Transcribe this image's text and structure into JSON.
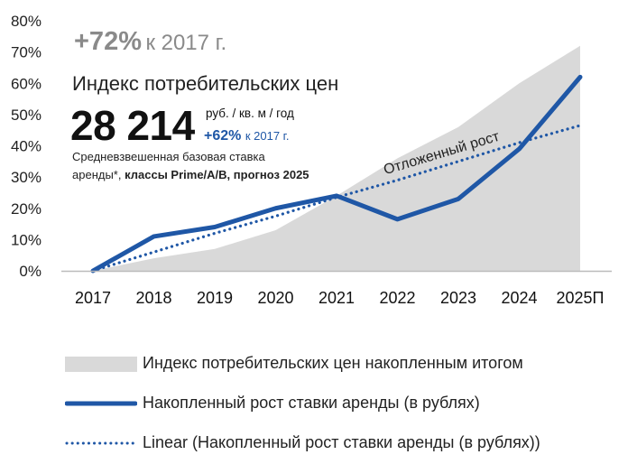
{
  "headline": {
    "big": "+72%",
    "small": "к 2017 г."
  },
  "subtitle": "Индекс потребительских цен",
  "value": "28 214",
  "value_unit": "руб. / кв. м / год",
  "value_growth": {
    "big": "+62%",
    "small": "к 2017 г."
  },
  "description": {
    "line1": "Средневзвешенная базовая ставка",
    "line2_prefix": "аренды*, ",
    "line2_bold": "классы Prime/A/B, прогноз 2025"
  },
  "annotation": "Отложенный рост",
  "colors": {
    "area": "#d9d9d9",
    "line": "#1f57a6",
    "linear": "#1f57a6",
    "axis": "#bbbbbb"
  },
  "legend": [
    {
      "name": "Индекс потребительских цен накопленным итогом",
      "type": "area"
    },
    {
      "name": "Накопленный рост ставки аренды (в рублях)",
      "type": "line"
    },
    {
      "name": "Linear (Накопленный рост ставки аренды (в рублях))",
      "type": "dotted"
    }
  ],
  "chart_data": {
    "type": "line",
    "categories": [
      "2017",
      "2018",
      "2019",
      "2020",
      "2021",
      "2022",
      "2023",
      "2024",
      "2025П"
    ],
    "yticks": [
      "0%",
      "10%",
      "20%",
      "30%",
      "40%",
      "50%",
      "60%",
      "70%",
      "80%"
    ],
    "ylim": [
      0,
      80
    ],
    "grid": false,
    "legend_position": "bottom",
    "series": [
      {
        "name": "Индекс потребительских цен накопленным итогом",
        "kind": "area",
        "values": [
          0,
          4,
          7,
          13,
          24,
          36,
          46,
          60,
          72
        ]
      },
      {
        "name": "Накопленный рост ставки аренды (в рублях)",
        "kind": "line",
        "values": [
          0,
          11,
          14,
          20,
          24,
          16.5,
          23,
          39,
          62
        ]
      },
      {
        "name": "Linear (Накопленный рост ставки аренды (в рублях))",
        "kind": "trend",
        "values": [
          0,
          6,
          12,
          17.5,
          23.5,
          29,
          35,
          41,
          46.5
        ]
      }
    ]
  }
}
